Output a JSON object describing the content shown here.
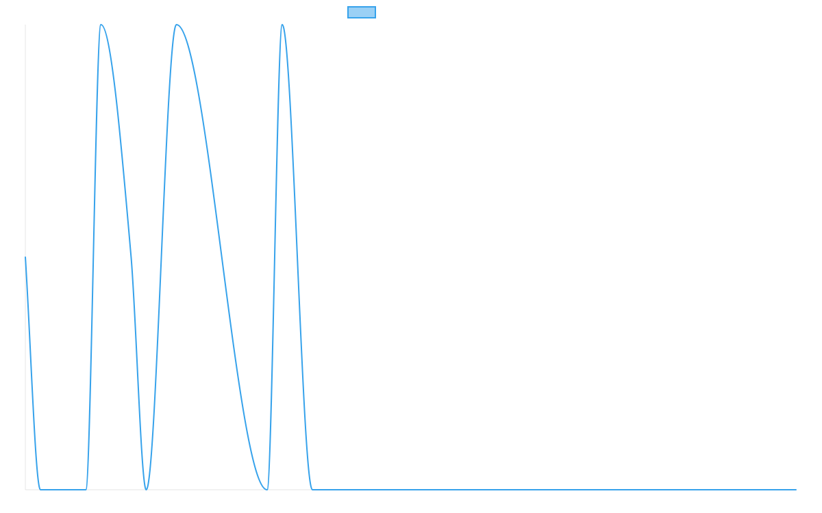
{
  "chart_data": {
    "type": "line",
    "legend": {
      "position": "top-center",
      "entries": [
        {
          "name": "",
          "color": "#36a2eb",
          "fill": "#9ad0f5"
        }
      ]
    },
    "grid": false,
    "axes": {
      "x_ticks_visible": false,
      "y_ticks_visible": false
    },
    "xlim": [
      0,
      51
    ],
    "ylim": [
      0,
      1
    ],
    "series": [
      {
        "name": "",
        "color": "#36a2eb",
        "x": [
          0,
          1,
          4,
          5,
          7,
          8,
          10,
          16,
          17,
          19,
          20,
          51
        ],
        "y": [
          0.5,
          0,
          0,
          1,
          0.5,
          0,
          1,
          0,
          1,
          0,
          0,
          0
        ]
      }
    ]
  }
}
